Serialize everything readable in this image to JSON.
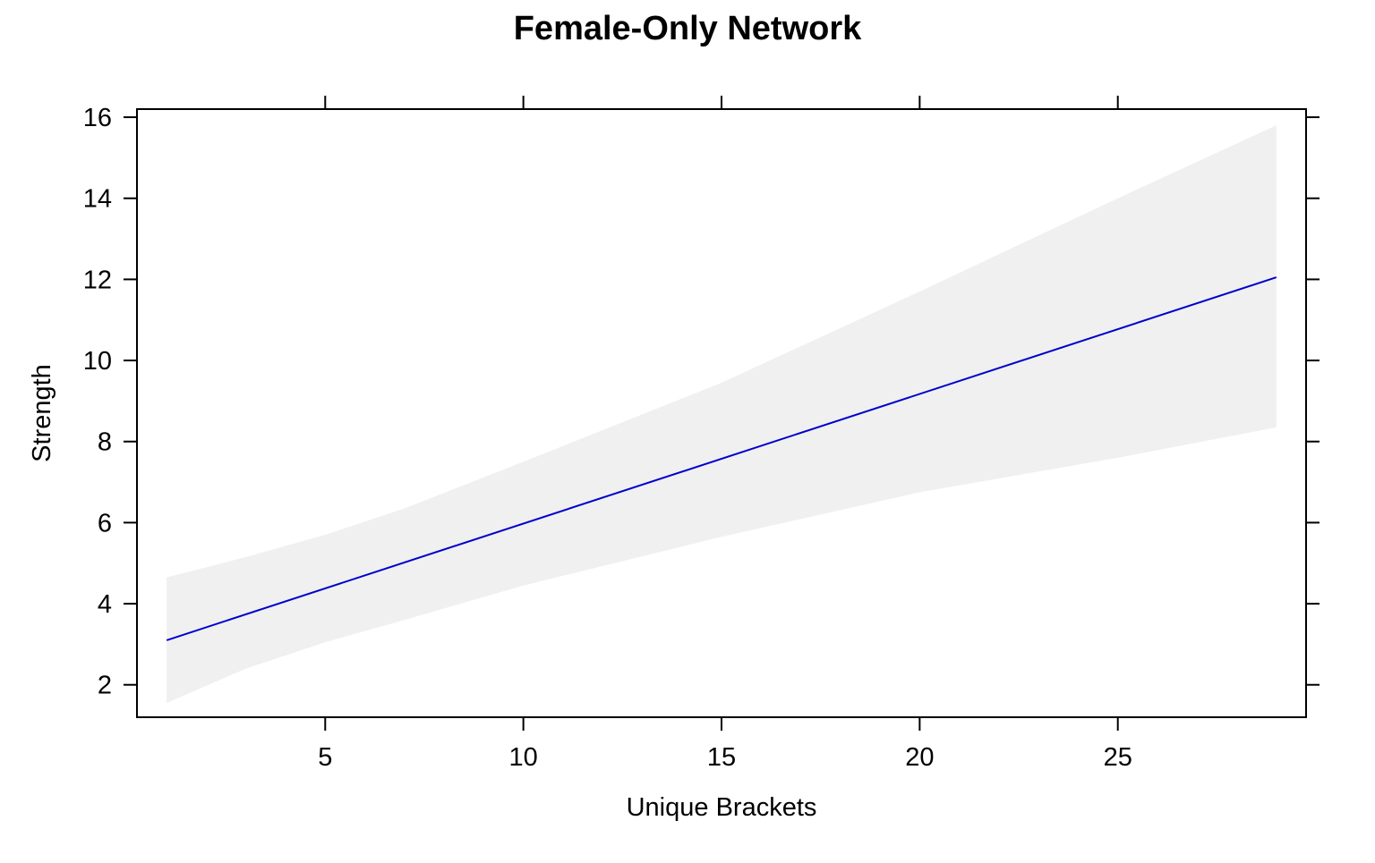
{
  "chart_data": {
    "type": "line",
    "title": "Female-Only Network",
    "xlabel": "Unique Brackets",
    "ylabel": "Strength",
    "xlim": [
      0.25,
      29.75
    ],
    "ylim": [
      1.2,
      16.2
    ],
    "x_ticks": [
      5,
      10,
      15,
      20,
      25
    ],
    "y_ticks": [
      2,
      4,
      6,
      8,
      10,
      12,
      14,
      16
    ],
    "grid": false,
    "legend": "none",
    "series": [
      {
        "color": "#0000cd",
        "x": [
          1,
          29
        ],
        "y": [
          3.1,
          12.05
        ]
      }
    ],
    "confidence_band": {
      "color": "#f0f0f0",
      "x": [
        1,
        3,
        5,
        7,
        10,
        15,
        20,
        25,
        29
      ],
      "lower": [
        1.55,
        2.4,
        3.05,
        3.6,
        4.45,
        5.65,
        6.75,
        7.6,
        8.35
      ],
      "upper": [
        4.65,
        5.15,
        5.7,
        6.35,
        7.5,
        9.45,
        11.7,
        14.0,
        15.8
      ]
    }
  }
}
